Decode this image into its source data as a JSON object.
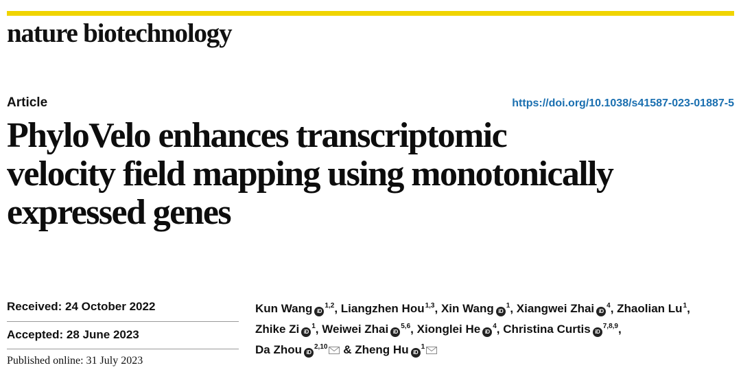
{
  "journal": "nature biotechnology",
  "article_type": "Article",
  "doi": "https://doi.org/10.1038/s41587-023-01887-5",
  "title_lines": [
    "PhyloVelo enhances transcriptomic",
    "velocity field mapping using monotonically",
    "expressed genes"
  ],
  "dates": {
    "received": "Received: 24 October 2022",
    "accepted": "Accepted: 28 June 2023",
    "published": "Published online: 31 July 2023"
  },
  "authors": [
    {
      "name": "Kun Wang",
      "orcid": true,
      "sup": "1,2",
      "mail": false,
      "sep": ", "
    },
    {
      "name": "Liangzhen Hou",
      "orcid": false,
      "sup": "1,3",
      "mail": false,
      "sep": ", "
    },
    {
      "name": "Xin Wang",
      "orcid": true,
      "sup": "1",
      "mail": false,
      "sep": ", "
    },
    {
      "name": "Xiangwei Zhai",
      "orcid": true,
      "sup": "4",
      "mail": false,
      "sep": ", "
    },
    {
      "name": "Zhaolian Lu",
      "orcid": false,
      "sup": "1",
      "mail": false,
      "sep": ","
    },
    {
      "name": "Zhike Zi",
      "orcid": true,
      "sup": "1",
      "mail": false,
      "sep": ", "
    },
    {
      "name": "Weiwei Zhai",
      "orcid": true,
      "sup": "5,6",
      "mail": false,
      "sep": ", "
    },
    {
      "name": "Xionglei He",
      "orcid": true,
      "sup": "4",
      "mail": false,
      "sep": ", "
    },
    {
      "name": "Christina Curtis",
      "orcid": true,
      "sup": "7,8,9",
      "mail": false,
      "sep": ","
    },
    {
      "name": "Da Zhou",
      "orcid": true,
      "sup": "2,10",
      "mail": true,
      "sep": " & "
    },
    {
      "name": "Zheng Hu",
      "orcid": true,
      "sup": "1",
      "mail": true,
      "sep": ""
    }
  ],
  "icons": {
    "orcid": "orcid-icon",
    "mail": "envelope-icon"
  },
  "colors": {
    "accent_bar": "#f0d400",
    "doi_link": "#1a6fb0"
  }
}
